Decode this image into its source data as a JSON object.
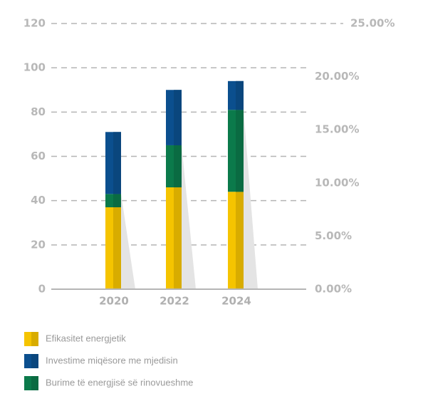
{
  "chart_data": {
    "type": "bar",
    "stacked": true,
    "categories": [
      "2020",
      "2022",
      "2024"
    ],
    "series": [
      {
        "name": "Efikasitet energjetik",
        "color": "#f5c400",
        "values": [
          37,
          46,
          44
        ]
      },
      {
        "name": "Investime miqësore me mjedisin",
        "color": "#0b4f8e",
        "values": [
          28,
          25,
          13
        ]
      },
      {
        "name": "Burime të energjisë së rinovueshme",
        "color": "#0b7a4b",
        "values": [
          6,
          19,
          37
        ]
      }
    ],
    "ylim": [
      0,
      120
    ],
    "yticks": [
      0,
      20,
      40,
      60,
      80,
      100,
      120
    ],
    "y2lim": [
      0,
      25
    ],
    "y2ticks": [
      {
        "value": 0,
        "label": "0.00%"
      },
      {
        "value": 5,
        "label": "5.00%"
      },
      {
        "value": 10,
        "label": "10.00%"
      },
      {
        "value": 15,
        "label": "15.00%"
      },
      {
        "value": 20,
        "label": "20.00%"
      },
      {
        "value": 25,
        "label": "25.00%"
      }
    ],
    "grid": true,
    "legend": "bottom"
  }
}
